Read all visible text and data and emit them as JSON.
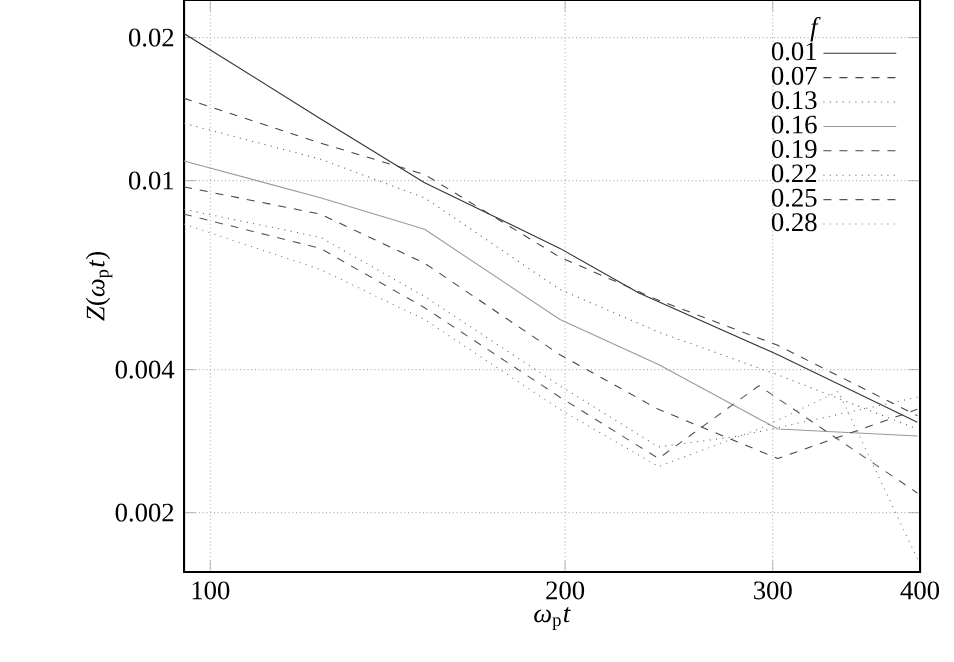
{
  "chart_data": {
    "type": "line",
    "xlabel": "*ω*$_{p}$*t*",
    "ylabel": "*Z*(*ω*$_{p}$*t*)",
    "legend_title": "f",
    "log": "xy",
    "grid": true,
    "legend": "top right",
    "xlim": [
      95,
      400
    ],
    "ylim": [
      0.0015,
      0.024
    ],
    "xticks": [
      100,
      200,
      300,
      400
    ],
    "yticks": [
      0.002,
      0.004,
      0.01,
      0.02
    ],
    "series": [
      {
        "name": "0.01",
        "color": "#333333",
        "line_style": "solid",
        "x": [
          95,
          124,
          152,
          198,
          231,
          303,
          398
        ],
        "values": [
          0.0204,
          0.0135,
          0.0099,
          0.0072,
          0.0058,
          0.0043,
          0.0031
        ]
      },
      {
        "name": "0.07",
        "color": "#444444",
        "line_style": "dashed",
        "x": [
          95,
          124,
          152,
          198,
          240,
          303,
          398
        ],
        "values": [
          0.0149,
          0.012,
          0.0103,
          0.0069,
          0.0056,
          0.0045,
          0.0032
        ]
      },
      {
        "name": "0.13",
        "color": "#555555",
        "line_style": "dotted",
        "x": [
          95,
          124,
          152,
          198,
          240,
          303,
          398
        ],
        "values": [
          0.0132,
          0.0111,
          0.0092,
          0.0059,
          0.0048,
          0.0039,
          0.003
        ]
      },
      {
        "name": "0.16",
        "color": "#999999",
        "line_style": "solid",
        "x": [
          95,
          124,
          152,
          198,
          240,
          303,
          398
        ],
        "values": [
          0.011,
          0.0092,
          0.0079,
          0.0051,
          0.0041,
          0.003,
          0.0029
        ]
      },
      {
        "name": "0.19",
        "color": "#444444",
        "line_style": "dashed",
        "x": [
          95,
          124,
          152,
          198,
          240,
          303,
          398
        ],
        "values": [
          0.0097,
          0.0085,
          0.0067,
          0.0043,
          0.0033,
          0.0026,
          0.0033
        ]
      },
      {
        "name": "0.22",
        "color": "#666666",
        "line_style": "dotted",
        "x": [
          95,
          124,
          152,
          198,
          240,
          281,
          398
        ],
        "values": [
          0.0087,
          0.0076,
          0.0057,
          0.0037,
          0.00275,
          0.0029,
          0.0035
        ]
      },
      {
        "name": "0.25",
        "color": "#555555",
        "line_style": "dashed",
        "x": [
          95,
          124,
          152,
          198,
          240,
          292,
          398
        ],
        "values": [
          0.0085,
          0.0072,
          0.0054,
          0.0035,
          0.0026,
          0.0037,
          0.0022
        ]
      },
      {
        "name": "0.28",
        "color": "#777777",
        "line_style": "dotted",
        "x": [
          95,
          124,
          152,
          198,
          240,
          292,
          341,
          398
        ],
        "values": [
          0.0081,
          0.0065,
          0.0051,
          0.0033,
          0.0025,
          0.003,
          0.0036,
          0.0016
        ]
      }
    ]
  }
}
